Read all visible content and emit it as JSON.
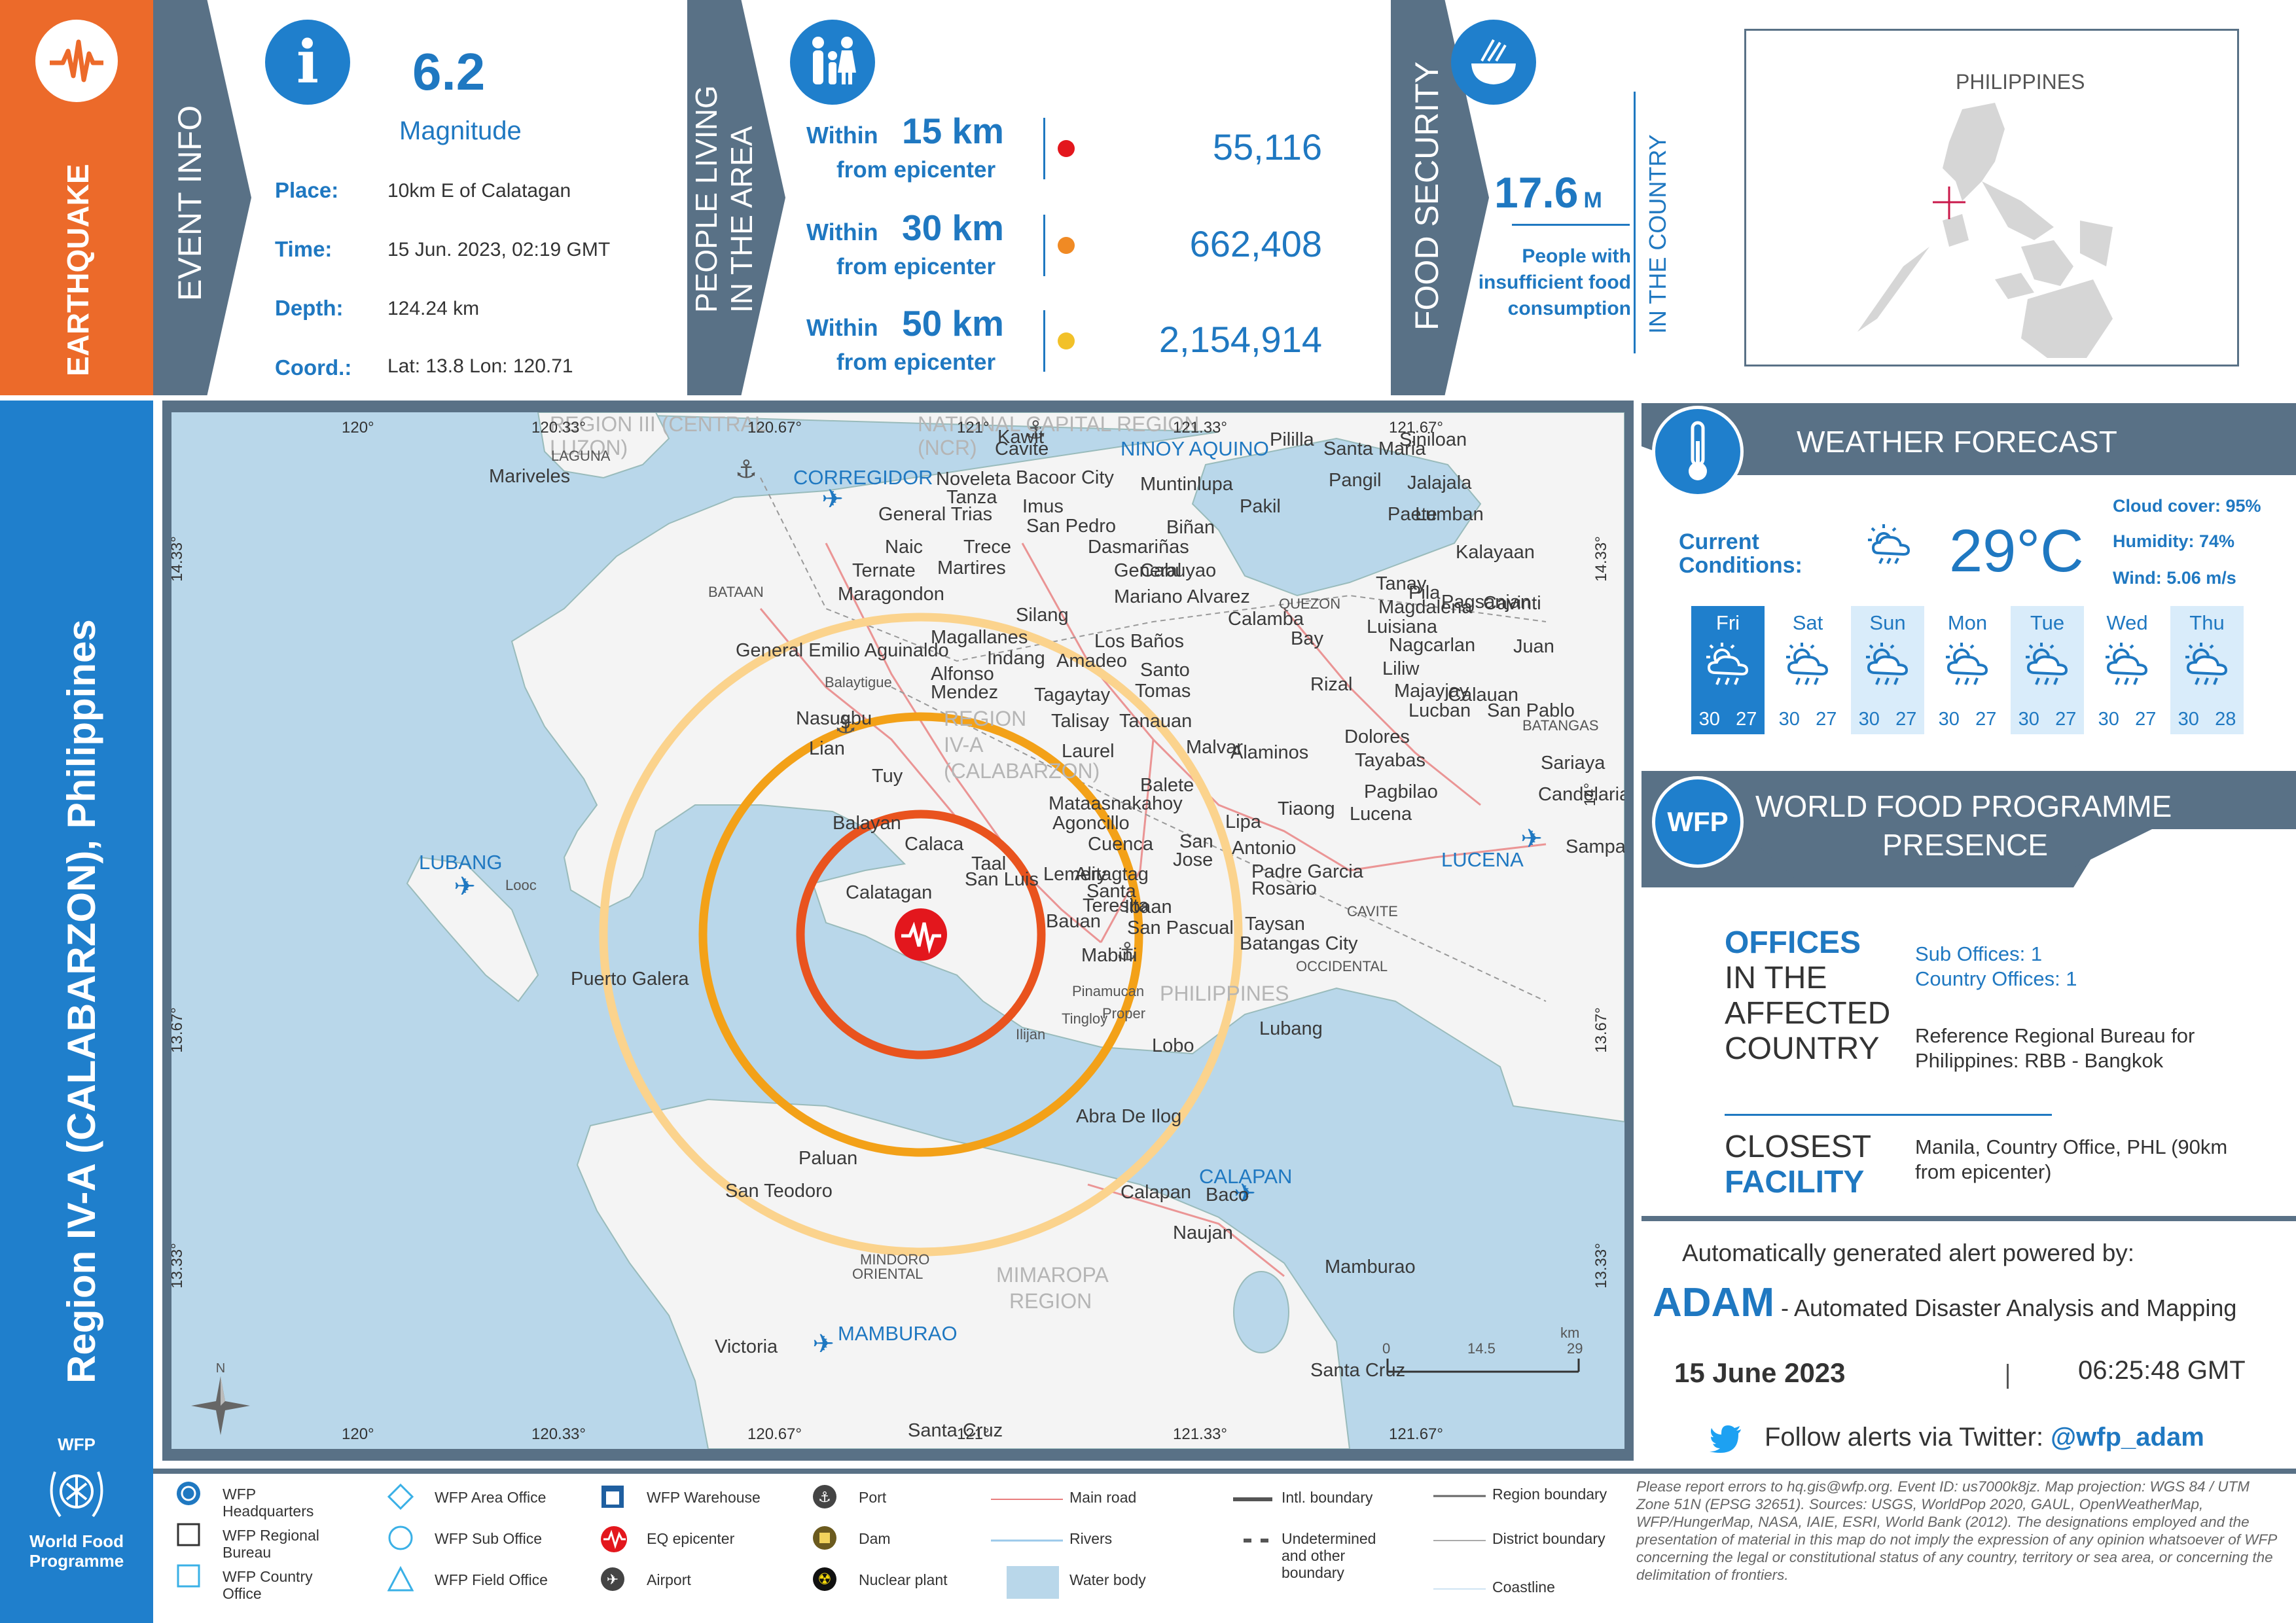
{
  "header": {
    "hazard": "EARTHQUAKE",
    "region": "Region IV-A (CALABARZON), Philippines",
    "event_info_title": "EVENT INFO",
    "people_title": "PEOPLE LIVING IN THE AREA",
    "food_title": "FOOD SECURITY"
  },
  "event": {
    "magnitude": "6.2",
    "magnitude_label": "Magnitude",
    "place_label": "Place:",
    "place": "10km E of Calatagan",
    "time_label": "Time:",
    "time": "15 Jun. 2023, 02:19 GMT",
    "depth_label": "Depth:",
    "depth": "124.24 km",
    "coord_label": "Coord.:",
    "coord": "Lat: 13.8 Lon: 120.71"
  },
  "population": [
    {
      "within": "Within",
      "km": "15 km",
      "from": "from epicenter",
      "count": "55,116",
      "color": "#e3171d"
    },
    {
      "within": "Within",
      "km": "30 km",
      "from": "from epicenter",
      "count": "662,408",
      "color": "#f08a24"
    },
    {
      "within": "Within",
      "km": "50 km",
      "from": "from epicenter",
      "count": "2,154,914",
      "color": "#f2c129"
    }
  ],
  "food": {
    "value": "17.6",
    "unit": "M",
    "desc": "People with insufficient food consumption",
    "scope": "IN THE COUNTRY",
    "inset_label": "PHILIPPINES"
  },
  "map": {
    "labels": [
      {
        "t": "REGION III (CENTRAL",
        "c": "faint"
      },
      {
        "t": "LUZON)",
        "c": "faint"
      },
      {
        "t": "NATIONAL CAPITAL REGION",
        "c": "faint"
      },
      {
        "t": "(NCR)",
        "c": "faint"
      },
      {
        "t": "REGION",
        "c": "faint"
      },
      {
        "t": "IV-A",
        "c": "faint"
      },
      {
        "t": "(CALABARZON)",
        "c": "faint"
      },
      {
        "t": "MIMAROPA",
        "c": "faint"
      },
      {
        "t": "REGION",
        "c": "faint"
      },
      {
        "t": "PHILIPPINES",
        "c": "faint"
      },
      {
        "t": "CORREGIDOR",
        "c": "ap"
      },
      {
        "t": "NINOY AQUINO",
        "c": "ap"
      },
      {
        "t": "LUBANG",
        "c": "ap"
      },
      {
        "t": "LUCENA",
        "c": "ap"
      },
      {
        "t": "CALAPAN",
        "c": "ap"
      },
      {
        "t": "MAMBURAO",
        "c": "ap"
      },
      {
        "t": "Mariveles"
      },
      {
        "t": "Cavite"
      },
      {
        "t": "Kawit"
      },
      {
        "t": "Bacoor City"
      },
      {
        "t": "Noveleta"
      },
      {
        "t": "Tanza"
      },
      {
        "t": "General Trias"
      },
      {
        "t": "Imus"
      },
      {
        "t": "Muntinlupa"
      },
      {
        "t": "San Pedro"
      },
      {
        "t": "Naic"
      },
      {
        "t": "Trece"
      },
      {
        "t": "Martires"
      },
      {
        "t": "Biñan"
      },
      {
        "t": "Dasmariñas"
      },
      {
        "t": "Ternate"
      },
      {
        "t": "General"
      },
      {
        "t": "Cabuyao"
      },
      {
        "t": "Maragondon"
      },
      {
        "t": "Mariano Alvarez"
      },
      {
        "t": "Silang"
      },
      {
        "t": "Calamba"
      },
      {
        "t": "Bay"
      },
      {
        "t": "Los Baños"
      },
      {
        "t": "Magallanes"
      },
      {
        "t": "General Emilio Aguinaldo"
      },
      {
        "t": "Indang"
      },
      {
        "t": "Amadeo"
      },
      {
        "t": "Alfonso"
      },
      {
        "t": "Balaytigue",
        "c": "small"
      },
      {
        "t": "Mendez"
      },
      {
        "t": "Tagaytay"
      },
      {
        "t": "Santo"
      },
      {
        "t": "Tomas"
      },
      {
        "t": "Nasugbu"
      },
      {
        "t": "Talisay"
      },
      {
        "t": "Tanauan"
      },
      {
        "t": "Lian"
      },
      {
        "t": "Laurel"
      },
      {
        "t": "Malvar"
      },
      {
        "t": "Alaminos"
      },
      {
        "t": "Tuy"
      },
      {
        "t": "Balete"
      },
      {
        "t": "Mataasnakahoy"
      },
      {
        "t": "Agoncillo"
      },
      {
        "t": "Balayan"
      },
      {
        "t": "Calaca"
      },
      {
        "t": "Cuenca"
      },
      {
        "t": "Lipa"
      },
      {
        "t": "Tiaong"
      },
      {
        "t": "San"
      },
      {
        "t": "Jose"
      },
      {
        "t": "Antonio"
      },
      {
        "t": "Taal"
      },
      {
        "t": "San Luis"
      },
      {
        "t": "Lemery"
      },
      {
        "t": "Alitagtag"
      },
      {
        "t": "Santa"
      },
      {
        "t": "Teresita"
      },
      {
        "t": "Padre Garcia"
      },
      {
        "t": "Rosario"
      },
      {
        "t": "Calatagan"
      },
      {
        "t": "Ibaan"
      },
      {
        "t": "Bauan"
      },
      {
        "t": "San Pascual"
      },
      {
        "t": "Taysan"
      },
      {
        "t": "Batangas City"
      },
      {
        "t": "Mabini"
      },
      {
        "t": "Pinamucan",
        "c": "small"
      },
      {
        "t": "Proper",
        "c": "small"
      },
      {
        "t": "Tingloy",
        "c": "small"
      },
      {
        "t": "Ilijan",
        "c": "small"
      },
      {
        "t": "Lobo"
      },
      {
        "t": "Lubang"
      },
      {
        "t": "Looc",
        "c": "small"
      },
      {
        "t": "Puerto Galera"
      },
      {
        "t": "Abra De Ilog"
      },
      {
        "t": "Paluan"
      },
      {
        "t": "San Teodoro"
      },
      {
        "t": "Calapan"
      },
      {
        "t": "Baco"
      },
      {
        "t": "Naujan"
      },
      {
        "t": "Mamburao"
      },
      {
        "t": "Victoria"
      },
      {
        "t": "Santa Cruz"
      },
      {
        "t": "Tanay"
      },
      {
        "t": "Pililla"
      },
      {
        "t": "Santa Maria"
      },
      {
        "t": "Siniloan"
      },
      {
        "t": "Pangil"
      },
      {
        "t": "Jalajala"
      },
      {
        "t": "Pakil"
      },
      {
        "t": "Paete"
      },
      {
        "t": "Lumban"
      },
      {
        "t": "Kalayaan"
      },
      {
        "t": "Pagsanjan"
      },
      {
        "t": "Cavinti"
      },
      {
        "t": "Pila"
      },
      {
        "t": "Magdalena"
      },
      {
        "t": "Luisiana"
      },
      {
        "t": "Nagcarlan"
      },
      {
        "t": "Liliw"
      },
      {
        "t": "Majayjay"
      },
      {
        "t": "Calauan"
      },
      {
        "t": "Rizal"
      },
      {
        "t": "Lucban"
      },
      {
        "t": "San Pablo"
      },
      {
        "t": "Dolores"
      },
      {
        "t": "Tayabas"
      },
      {
        "t": "Sariaya"
      },
      {
        "t": "Pagbilao"
      },
      {
        "t": "Candelaria"
      },
      {
        "t": "Lucena"
      },
      {
        "t": "Sampaloc"
      },
      {
        "t": "Juan"
      },
      {
        "t": "CAVITE",
        "c": "small"
      },
      {
        "t": "BATAAN",
        "c": "small"
      },
      {
        "t": "LAGUNA",
        "c": "small"
      },
      {
        "t": "QUEZON",
        "c": "small"
      },
      {
        "t": "BATANGAS",
        "c": "small"
      },
      {
        "t": "OCCIDENTAL",
        "c": "small"
      },
      {
        "t": "MINDORO",
        "c": "small"
      },
      {
        "t": "ORIENTAL",
        "c": "small"
      }
    ],
    "grid_top": [
      "120°",
      "120.33°",
      "120.67°",
      "121°",
      "121.33°",
      "121.67°"
    ],
    "grid_bottom": [
      "120°",
      "120.33°",
      "120.67°",
      "121°",
      "121.33°",
      "121.67°"
    ],
    "grid_left": [
      "14.33°",
      "14°",
      "13.67°",
      "13.33°"
    ],
    "grid_right": [
      "14.33°",
      "14°",
      "13.67°",
      "13.33°"
    ],
    "bottom_place": "Santa Cruz",
    "scale": {
      "unit": "km",
      "ticks": [
        "0",
        "14.5",
        "29"
      ]
    },
    "north": "N"
  },
  "weather": {
    "title": "WEATHER FORECAST",
    "current_label": "Current Conditions:",
    "temp": "29°C",
    "cloud": "Cloud cover: 95%",
    "humidity": "Humidity: 74%",
    "wind": "Wind: 5.06 m/s",
    "days": [
      {
        "d": "Fri",
        "hi": "30",
        "lo": "27"
      },
      {
        "d": "Sat",
        "hi": "30",
        "lo": "27"
      },
      {
        "d": "Sun",
        "hi": "30",
        "lo": "27"
      },
      {
        "d": "Mon",
        "hi": "30",
        "lo": "27"
      },
      {
        "d": "Tue",
        "hi": "30",
        "lo": "27"
      },
      {
        "d": "Wed",
        "hi": "30",
        "lo": "27"
      },
      {
        "d": "Thu",
        "hi": "30",
        "lo": "28"
      }
    ]
  },
  "wfp": {
    "badge": "WFP",
    "title_line1": "WORLD FOOD PROGRAMME",
    "title_line2": "PRESENCE",
    "offices_w1": "OFFICES",
    "offices_w2": "IN THE",
    "offices_w3": "AFFECTED",
    "offices_w4": "COUNTRY",
    "sub_offices": "Sub Offices: 1",
    "country_offices": "Country Offices: 1",
    "bureau": "Reference Regional Bureau for Philippines: RBB - Bangkok",
    "closest_w1": "CLOSEST",
    "closest_w2": "FACILITY",
    "facility": "Manila, Country Office, PHL (90km from epicenter)"
  },
  "adam": {
    "powered": "Automatically generated alert powered by:",
    "name": "ADAM",
    "full": " - Automated Disaster Analysis and Mapping",
    "date": "15 June 2023",
    "time": "06:25:48 GMT",
    "follow": "Follow alerts via Twitter: ",
    "handle": "@wfp_adam"
  },
  "logo": {
    "top": "WFP",
    "bottom": "World Food Programme"
  },
  "legend": {
    "items": [
      "WFP Headquarters",
      "WFP Regional Bureau",
      "WFP Country Office",
      "WFP Area Office",
      "WFP Sub Office",
      "WFP Field Office",
      "WFP Warehouse",
      "EQ epicenter",
      "Airport",
      "Port",
      "Dam",
      "Nuclear plant",
      "Main road",
      "Rivers",
      "Water body",
      "Intl. boundary",
      "Undetermined and other boundary",
      "Region boundary",
      "District boundary",
      "Coastline"
    ]
  },
  "disclaimer": "Please report errors to hq.gis@wfp.org. Event ID: us7000k8jz. Map projection: WGS 84 / UTM Zone 51N (EPSG 32651). Sources: USGS, WorldPop 2020, GAUL, OpenWeatherMap, WFP/HungerMap, NASA, IAIE, ESRI, World Bank (2012). The designations employed and the presentation of material in this map do not imply the expression of any opinion whatsoever of WFP concerning the legal or constitutional status of any country, territory or sea area, or concerning the delimitation of frontiers."
}
